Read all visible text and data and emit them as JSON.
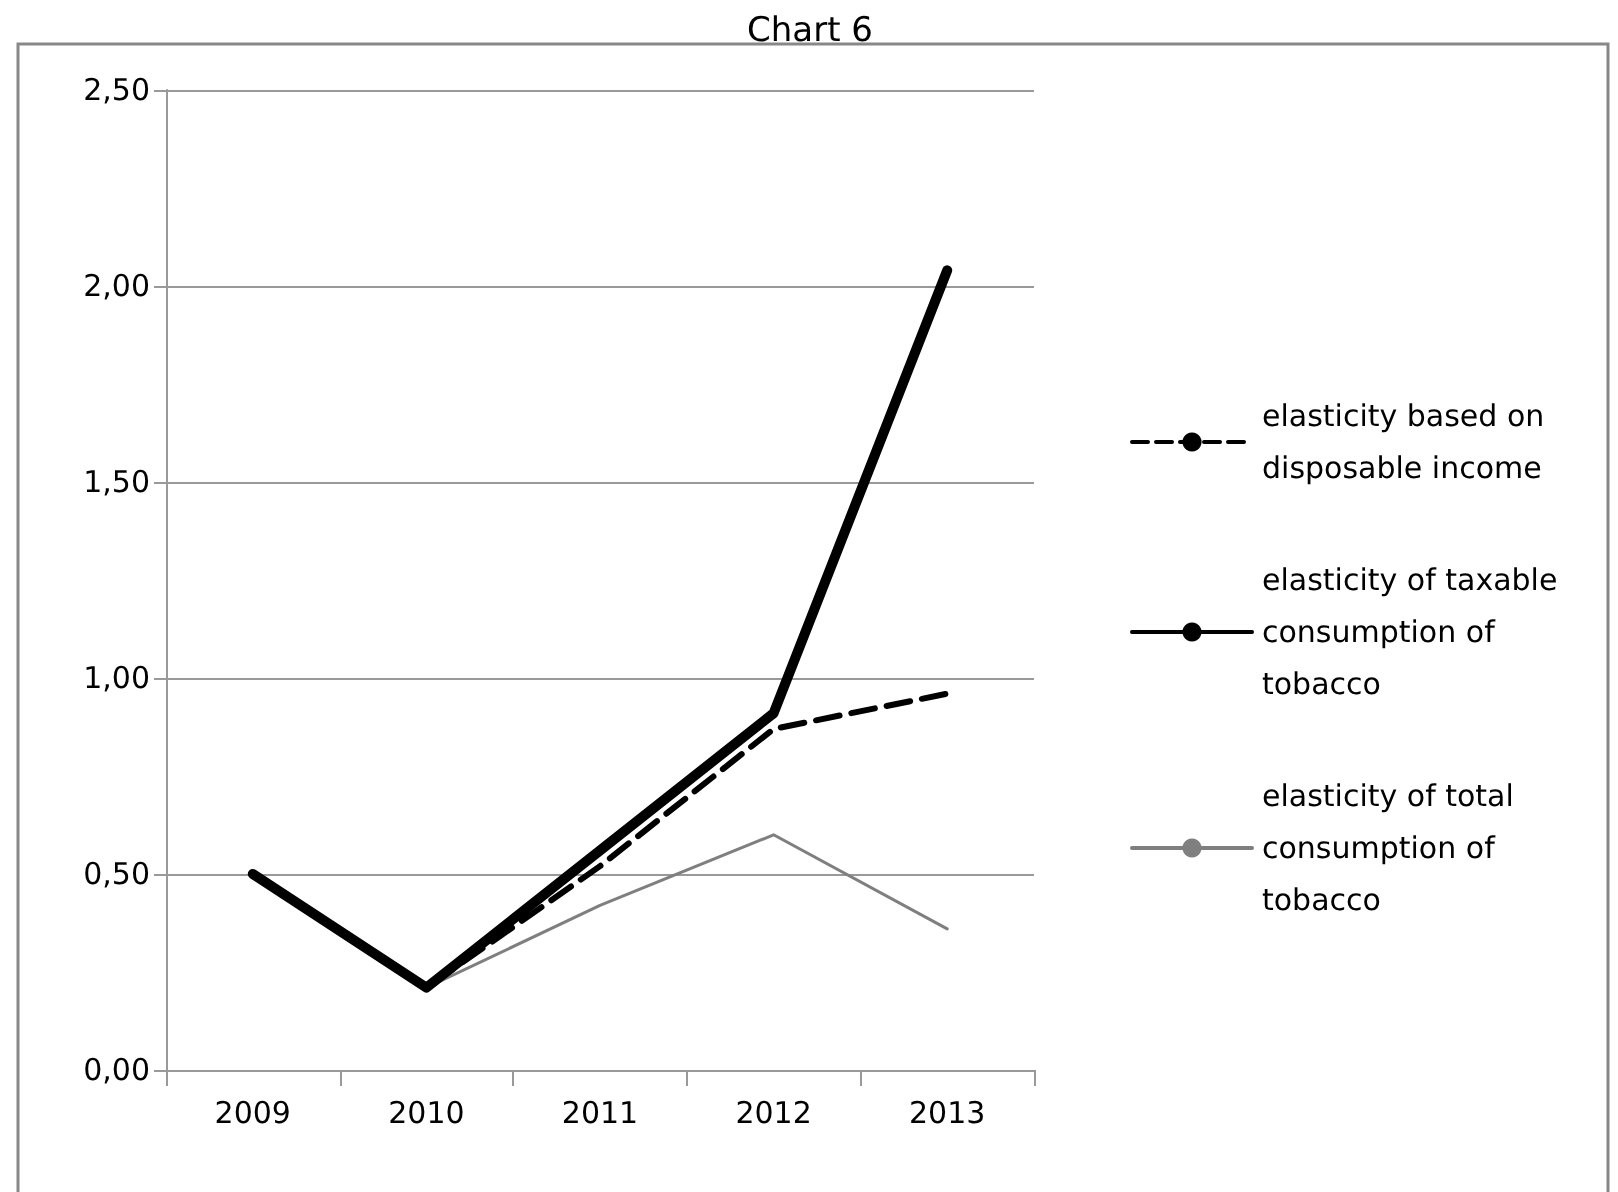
{
  "chart_data": {
    "type": "line",
    "title": "Chart 6",
    "categories": [
      "2009",
      "2010",
      "2011",
      "2012",
      "2013"
    ],
    "series": [
      {
        "name": "elasticity based on disposable income",
        "color": "#000000",
        "line_style": "dashed",
        "values": [
          0.5,
          0.21,
          0.52,
          0.87,
          0.96
        ]
      },
      {
        "name": "elasticity of taxable consumption of tobacco",
        "color": "#000000",
        "line_style": "solid",
        "values": [
          0.5,
          0.21,
          0.56,
          0.91,
          2.04
        ]
      },
      {
        "name": "elasticity of total consumption of tobacco",
        "color": "#7f7f7f",
        "line_style": "solid",
        "values": [
          0.5,
          0.21,
          0.42,
          0.6,
          0.36
        ]
      }
    ],
    "ylim": [
      0,
      2.5
    ],
    "yticks": [
      {
        "value": 0,
        "label": "0,00"
      },
      {
        "value": 0.5,
        "label": "0,50"
      },
      {
        "value": 1,
        "label": "1,00"
      },
      {
        "value": 1.5,
        "label": "1,50"
      },
      {
        "value": 2,
        "label": "2,00"
      },
      {
        "value": 2.5,
        "label": "2,50"
      }
    ],
    "grid": "y",
    "legend": "right",
    "marker": "none"
  }
}
